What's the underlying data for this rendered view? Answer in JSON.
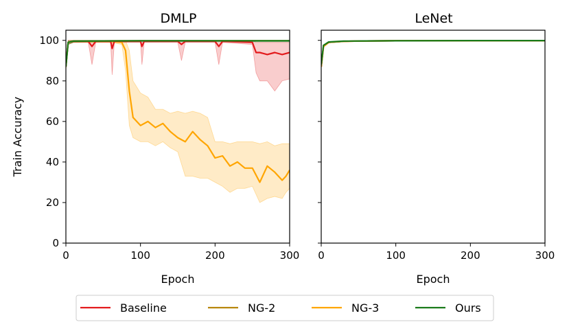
{
  "legend": {
    "placement": "bottom-center",
    "items": [
      {
        "label": "Baseline",
        "color": "#e31a1c"
      },
      {
        "label": "NG-2",
        "color": "#b8860b"
      },
      {
        "label": "NG-3",
        "color": "#ffa500"
      },
      {
        "label": "Ours",
        "color": "#1a7a1a"
      }
    ]
  },
  "chart_data": [
    {
      "type": "line",
      "title": "DMLP",
      "xlabel": "Epoch",
      "ylabel": "Train Accuracy",
      "xlim": [
        0,
        300
      ],
      "ylim": [
        0,
        105
      ],
      "xticks": [
        0,
        100,
        200,
        300
      ],
      "yticks": [
        0,
        20,
        40,
        60,
        80,
        100
      ],
      "grid": false,
      "series": [
        {
          "name": "NG-3",
          "color": "#ffa500",
          "band": true,
          "x": [
            0,
            3,
            10,
            20,
            40,
            60,
            75,
            80,
            85,
            90,
            100,
            110,
            120,
            130,
            140,
            150,
            160,
            170,
            180,
            190,
            200,
            210,
            220,
            230,
            240,
            250,
            260,
            270,
            280,
            290,
            295,
            300
          ],
          "y": [
            87,
            99,
            99.5,
            99.5,
            99.5,
            99.5,
            99,
            95,
            75,
            62,
            58,
            60,
            57,
            59,
            55,
            52,
            50,
            55,
            51,
            48,
            42,
            43,
            38,
            40,
            37,
            37,
            30,
            38,
            35,
            31,
            33,
            36
          ],
          "low": [
            85,
            98,
            99,
            99,
            99,
            99,
            98,
            85,
            58,
            52,
            50,
            50,
            48,
            50,
            47,
            45,
            33,
            33,
            32,
            32,
            30,
            28,
            25,
            27,
            27,
            28,
            20,
            22,
            23,
            22,
            25,
            27
          ],
          "high": [
            90,
            100,
            100,
            100,
            100,
            100,
            100,
            100,
            95,
            80,
            74,
            72,
            66,
            66,
            64,
            65,
            64,
            65,
            64,
            62,
            50,
            50,
            49,
            50,
            50,
            50,
            49,
            50,
            48,
            49,
            49,
            49
          ]
        },
        {
          "name": "Baseline",
          "color": "#e31a1c",
          "band": true,
          "x": [
            0,
            3,
            10,
            30,
            35,
            40,
            60,
            62,
            65,
            100,
            102,
            105,
            150,
            155,
            160,
            200,
            205,
            210,
            250,
            255,
            260,
            270,
            280,
            290,
            300
          ],
          "y": [
            88,
            99,
            99.5,
            99.5,
            97,
            99.5,
            99.5,
            96,
            99.5,
            99.5,
            97,
            99.5,
            99.5,
            98,
            99.5,
            99.5,
            97,
            99.5,
            99,
            94,
            94,
            93,
            94,
            93,
            94
          ],
          "low": [
            86,
            98,
            99,
            99,
            88,
            99,
            99,
            83,
            99,
            99,
            88,
            99,
            99,
            90,
            99,
            99,
            88,
            99,
            98,
            84,
            80,
            80,
            75,
            80,
            81
          ],
          "high": [
            90,
            100,
            100,
            100,
            100,
            100,
            100,
            100,
            100,
            100,
            100,
            100,
            100,
            100,
            100,
            100,
            100,
            100,
            100,
            99,
            99,
            99,
            99,
            99,
            99
          ]
        },
        {
          "name": "NG-2",
          "color": "#b8860b",
          "band": false,
          "x": [
            0,
            3,
            10,
            50,
            100,
            150,
            200,
            250,
            300
          ],
          "y": [
            87,
            99,
            99.6,
            99.7,
            99.8,
            99.8,
            99.8,
            99.8,
            99.8
          ]
        },
        {
          "name": "Ours",
          "color": "#1a7a1a",
          "band": true,
          "x": [
            0,
            3,
            10,
            50,
            100,
            150,
            200,
            250,
            300
          ],
          "y": [
            87,
            99,
            99.6,
            99.7,
            99.8,
            99.8,
            99.8,
            99.8,
            99.8
          ],
          "low": [
            86,
            98,
            99,
            99.2,
            99.2,
            99.3,
            99.3,
            99.3,
            99.3
          ],
          "high": [
            89,
            99.8,
            100,
            100,
            100,
            100,
            100,
            100,
            100
          ]
        }
      ]
    },
    {
      "type": "line",
      "title": "LeNet",
      "xlabel": "Epoch",
      "ylabel": "",
      "xlim": [
        0,
        300
      ],
      "ylim": [
        0,
        105
      ],
      "xticks": [
        0,
        100,
        200,
        300
      ],
      "yticks": [
        0,
        20,
        40,
        60,
        80,
        100
      ],
      "grid": false,
      "series": [
        {
          "name": "Baseline",
          "color": "#e31a1c",
          "band": false,
          "x": [
            0,
            3,
            10,
            30,
            60,
            100,
            200,
            300
          ],
          "y": [
            87,
            97,
            99,
            99.5,
            99.7,
            99.8,
            99.9,
            99.9
          ]
        },
        {
          "name": "NG-3",
          "color": "#ffa500",
          "band": false,
          "x": [
            0,
            3,
            10,
            30,
            60,
            100,
            200,
            300
          ],
          "y": [
            87,
            97,
            99,
            99.5,
            99.7,
            99.8,
            99.9,
            99.9
          ]
        },
        {
          "name": "NG-2",
          "color": "#b8860b",
          "band": false,
          "x": [
            0,
            3,
            10,
            30,
            60,
            100,
            200,
            300
          ],
          "y": [
            87,
            97.5,
            99,
            99.5,
            99.7,
            99.8,
            99.9,
            99.9
          ]
        },
        {
          "name": "Ours",
          "color": "#1a7a1a",
          "band": false,
          "x": [
            0,
            3,
            10,
            30,
            60,
            100,
            200,
            300
          ],
          "y": [
            88,
            97.5,
            99.2,
            99.6,
            99.7,
            99.8,
            99.9,
            99.9
          ]
        }
      ]
    }
  ]
}
